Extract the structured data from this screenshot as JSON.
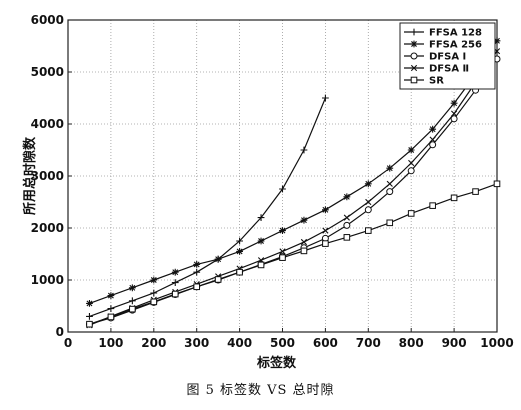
{
  "caption": "图 5 标签数 VS 总时隙",
  "chart_data": {
    "type": "line",
    "xlabel": "标签数",
    "ylabel": "所用总时隙数",
    "xlim": [
      0,
      1000
    ],
    "ylim": [
      0,
      6000
    ],
    "xticks": [
      0,
      100,
      200,
      300,
      400,
      500,
      600,
      700,
      800,
      900,
      1000
    ],
    "yticks": [
      0,
      1000,
      2000,
      3000,
      4000,
      5000,
      6000
    ],
    "grid": true,
    "legend_position": "top-right",
    "series": [
      {
        "name": "FFSA 128",
        "marker": "plus",
        "x": [
          50,
          100,
          150,
          200,
          250,
          300,
          350,
          400,
          450,
          500,
          550,
          600
        ],
        "values": [
          300,
          450,
          600,
          750,
          950,
          1150,
          1400,
          1750,
          2200,
          2750,
          3500,
          4500
        ]
      },
      {
        "name": "FFSA 256",
        "marker": "star",
        "x": [
          50,
          100,
          150,
          200,
          250,
          300,
          350,
          400,
          450,
          500,
          550,
          600,
          650,
          700,
          750,
          800,
          850,
          900,
          950,
          1000
        ],
        "values": [
          550,
          700,
          850,
          1000,
          1150,
          1300,
          1400,
          1550,
          1750,
          1950,
          2150,
          2350,
          2600,
          2850,
          3150,
          3500,
          3900,
          4400,
          4950,
          5600
        ]
      },
      {
        "name": "DFSA Ⅰ",
        "marker": "circle",
        "x": [
          50,
          100,
          150,
          200,
          250,
          300,
          350,
          400,
          450,
          500,
          550,
          600,
          650,
          700,
          750,
          800,
          850,
          900,
          950,
          1000
        ],
        "values": [
          150,
          270,
          420,
          570,
          720,
          870,
          1000,
          1150,
          1300,
          1450,
          1620,
          1800,
          2050,
          2350,
          2700,
          3100,
          3600,
          4100,
          4650,
          5250
        ]
      },
      {
        "name": "DFSA Ⅱ",
        "marker": "x",
        "x": [
          50,
          100,
          150,
          200,
          250,
          300,
          350,
          400,
          450,
          500,
          550,
          600,
          650,
          700,
          750,
          800,
          850,
          900,
          950,
          1000
        ],
        "values": [
          130,
          300,
          460,
          620,
          770,
          920,
          1070,
          1220,
          1380,
          1550,
          1730,
          1950,
          2200,
          2500,
          2850,
          3250,
          3700,
          4200,
          4800,
          5400
        ]
      },
      {
        "name": "SR",
        "marker": "square",
        "x": [
          50,
          100,
          150,
          200,
          250,
          300,
          350,
          400,
          450,
          500,
          550,
          600,
          650,
          700,
          750,
          800,
          850,
          900,
          950,
          1000
        ],
        "values": [
          150,
          290,
          440,
          580,
          730,
          870,
          1010,
          1150,
          1290,
          1430,
          1560,
          1700,
          1820,
          1950,
          2100,
          2280,
          2430,
          2580,
          2700,
          2850
        ]
      }
    ]
  }
}
